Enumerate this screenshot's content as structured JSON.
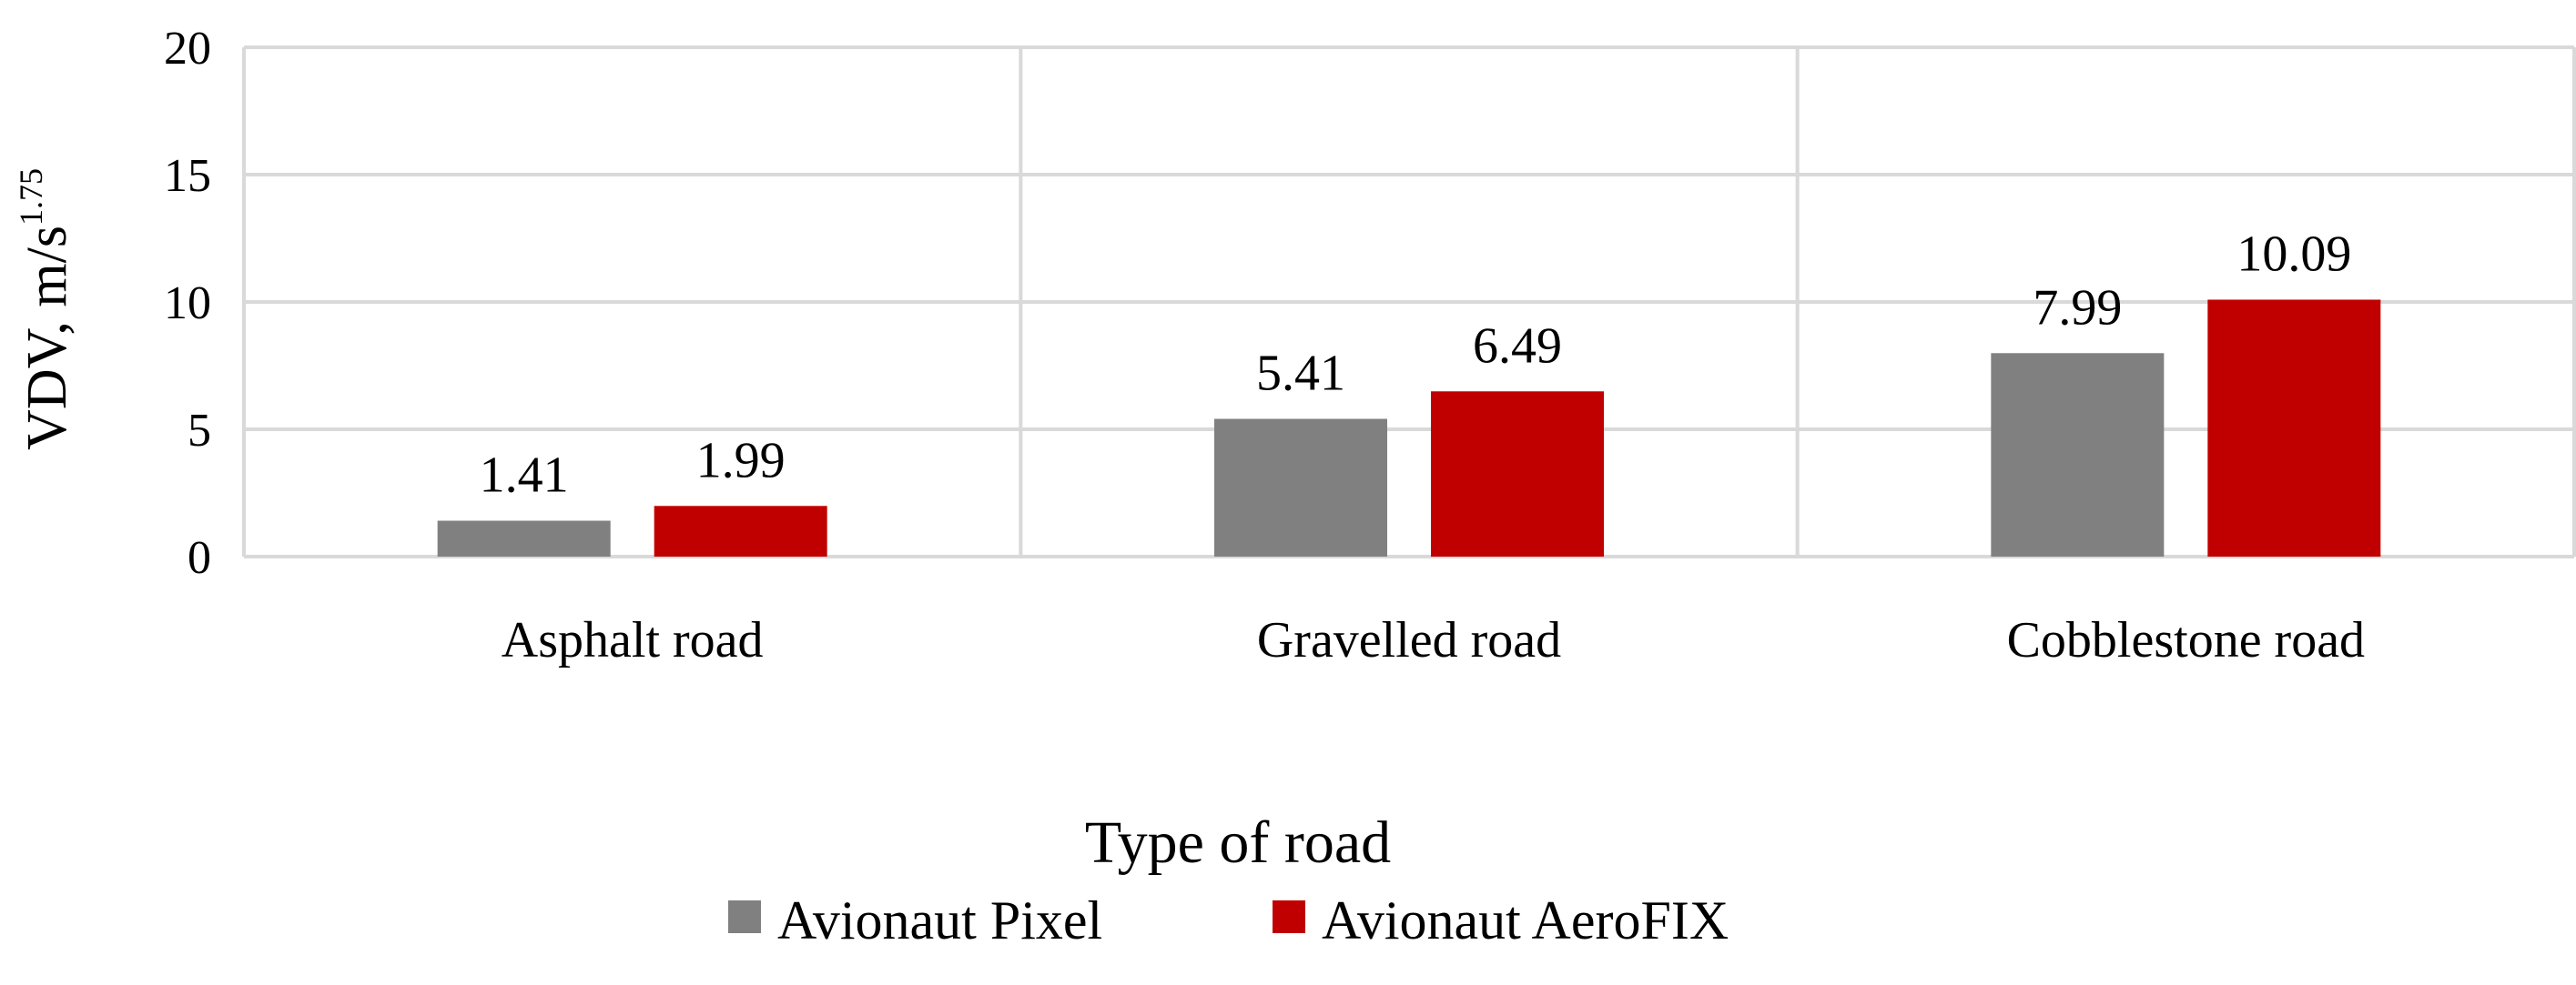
{
  "chart_data": {
    "type": "bar",
    "categories": [
      "Asphalt road",
      "Gravelled road",
      "Cobblestone road"
    ],
    "series": [
      {
        "name": "Avionaut Pixel",
        "color": "#808080",
        "values": [
          1.41,
          5.41,
          7.99
        ],
        "labels": [
          "1.41",
          "5.41",
          "7.99"
        ]
      },
      {
        "name": "Avionaut AeroFIX",
        "color": "#C00000",
        "values": [
          1.99,
          6.49,
          10.09
        ],
        "labels": [
          "1.99",
          "6.49",
          "10.09"
        ]
      }
    ],
    "ylim": [
      0,
      20
    ],
    "yticks": [
      0,
      5,
      10,
      15,
      20
    ],
    "ylabel": "VDV, m/s",
    "ylabel_sup": "1.75",
    "xlabel": "Type  of road",
    "grid": true,
    "legend": "bottom"
  }
}
